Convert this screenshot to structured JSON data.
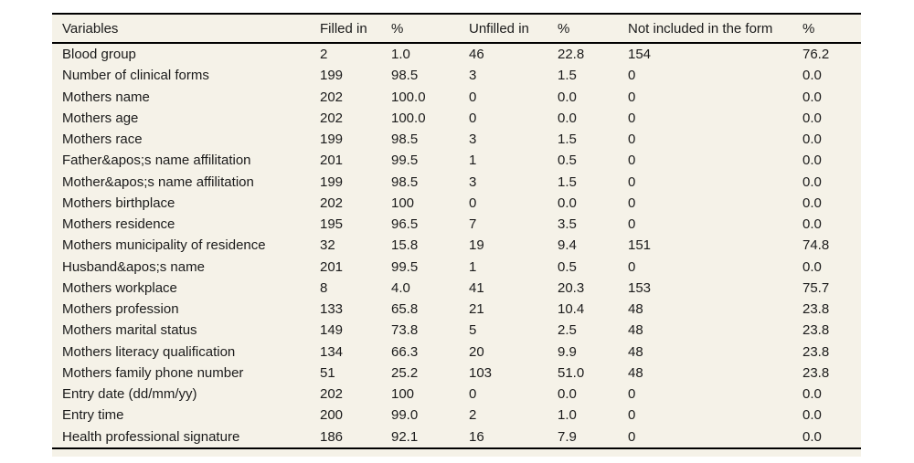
{
  "chart_data": {
    "type": "table",
    "columns": [
      "Variables",
      "Filled in",
      "%",
      "Unfilled in",
      "%",
      "Not included in the form",
      "%"
    ],
    "rows": [
      [
        "Blood group",
        "2",
        "1.0",
        "46",
        "22.8",
        "154",
        "76.2"
      ],
      [
        "Number of clinical forms",
        "199",
        "98.5",
        "3",
        "1.5",
        "0",
        "0.0"
      ],
      [
        "Mothers name",
        "202",
        "100.0",
        "0",
        "0.0",
        "0",
        "0.0"
      ],
      [
        "Mothers age",
        "202",
        "100.0",
        "0",
        "0.0",
        "0",
        "0.0"
      ],
      [
        "Mothers race",
        "199",
        "98.5",
        "3",
        "1.5",
        "0",
        "0.0"
      ],
      [
        "Father&apos;s name affilitation",
        "201",
        "99.5",
        "1",
        "0.5",
        "0",
        "0.0"
      ],
      [
        "Mother&apos;s name affilitation",
        "199",
        "98.5",
        "3",
        "1.5",
        "0",
        "0.0"
      ],
      [
        "Mothers birthplace",
        "202",
        "100",
        "0",
        "0.0",
        "0",
        "0.0"
      ],
      [
        "Mothers residence",
        "195",
        "96.5",
        "7",
        "3.5",
        "0",
        "0.0"
      ],
      [
        "Mothers municipality of residence",
        "32",
        "15.8",
        "19",
        "9.4",
        "151",
        "74.8"
      ],
      [
        "Husband&apos;s name",
        "201",
        "99.5",
        "1",
        "0.5",
        "0",
        "0.0"
      ],
      [
        "Mothers workplace",
        "8",
        "4.0",
        "41",
        "20.3",
        "153",
        "75.7"
      ],
      [
        "Mothers profession",
        "133",
        "65.8",
        "21",
        "10.4",
        "48",
        "23.8"
      ],
      [
        "Mothers marital status",
        "149",
        "73.8",
        "5",
        "2.5",
        "48",
        "23.8"
      ],
      [
        "Mothers literacy qualification",
        "134",
        "66.3",
        "20",
        "9.9",
        "48",
        "23.8"
      ],
      [
        "Mothers family phone number",
        "51",
        "25.2",
        "103",
        "51.0",
        "48",
        "23.8"
      ],
      [
        "Entry date (dd/mm/yy)",
        "202",
        "100",
        "0",
        "0.0",
        "0",
        "0.0"
      ],
      [
        "Entry time",
        "200",
        "99.0",
        "2",
        "1.0",
        "0",
        "0.0"
      ],
      [
        "Health professional signature",
        "186",
        "92.1",
        "16",
        "7.9",
        "0",
        "0.0"
      ]
    ]
  },
  "colors": {
    "page_bg": "#ffffff",
    "panel_bg": "#f5f2e8",
    "rule": "#000000",
    "text": "#1b1b1b"
  }
}
